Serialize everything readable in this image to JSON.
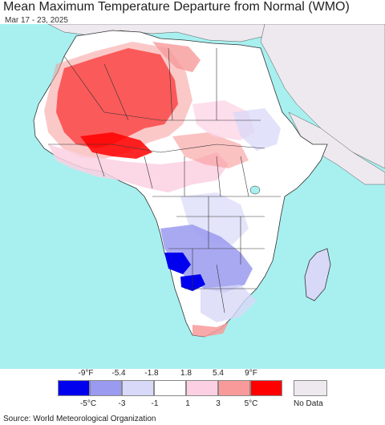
{
  "title": "Mean Maximum Temperature Departure from Normal (WMO)",
  "date_range": "Mar 17 - 23, 2025",
  "source": "Source: World Meteorological Organization",
  "colors": {
    "ocean": "#a8f0f0",
    "land_neutral": "#ffffff",
    "no_data": "#ede9ee",
    "border": "#333333"
  },
  "legend": {
    "fahrenheit_ticks": [
      "-9°F",
      "-5.4",
      "-1.8",
      "1.8",
      "5.4",
      "9°F"
    ],
    "celsius_ticks": [
      "-5°C",
      "-3",
      "-1",
      "1",
      "3",
      "5°C"
    ],
    "bins": [
      {
        "color": "#0000ee",
        "range": "below -5°C"
      },
      {
        "color": "#9a9af0",
        "range": "-5 to -3"
      },
      {
        "color": "#d8d8f8",
        "range": "-3 to -1"
      },
      {
        "color": "#ffffff",
        "range": "-1 to 1"
      },
      {
        "color": "#fcd0e2",
        "range": "1 to 3"
      },
      {
        "color": "#f89a9a",
        "range": "3 to 5"
      },
      {
        "color": "#ff0000",
        "range": "above 5°C"
      }
    ],
    "no_data_label": "No Data",
    "no_data_color": "#ede9ee"
  }
}
